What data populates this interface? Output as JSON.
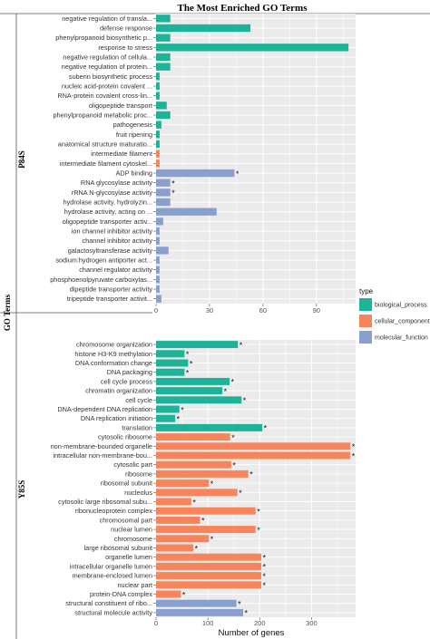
{
  "title": "The Most Enriched GO Terms",
  "ylabel": "GO Terms",
  "xlabel": "Number of genes",
  "legend": {
    "title": "type",
    "items": [
      {
        "name": "biological_process",
        "color": "#1cb398"
      },
      {
        "name": "cellular_component",
        "color": "#f8845c"
      },
      {
        "name": "molecular_function",
        "color": "#8a9fce"
      }
    ]
  },
  "chart_data": [
    {
      "type": "bar",
      "orientation": "horizontal",
      "panel": "P84S",
      "xlim": [
        0,
        112
      ],
      "xticks": [
        0,
        30,
        60,
        90
      ],
      "grid": true,
      "bars": [
        {
          "label": "negative regulation of transla...",
          "value": 8,
          "type": "biological_process",
          "star": false
        },
        {
          "label": "defense response",
          "value": 53,
          "type": "biological_process",
          "star": false
        },
        {
          "label": "phenylpropanoid biosynthetic p...",
          "value": 8,
          "type": "biological_process",
          "star": false
        },
        {
          "label": "response to stress",
          "value": 108,
          "type": "biological_process",
          "star": false
        },
        {
          "label": "negative regulation of cellula...",
          "value": 8,
          "type": "biological_process",
          "star": false
        },
        {
          "label": "negative regulation of protein...",
          "value": 8,
          "type": "biological_process",
          "star": false
        },
        {
          "label": "suberin biosynthetic process",
          "value": 2,
          "type": "biological_process",
          "star": false
        },
        {
          "label": "nucleic acid-protein covalent ...",
          "value": 2,
          "type": "biological_process",
          "star": false
        },
        {
          "label": "RNA-protein covalent cross-lin...",
          "value": 2,
          "type": "biological_process",
          "star": false
        },
        {
          "label": "oligopeptide transport",
          "value": 6,
          "type": "biological_process",
          "star": false
        },
        {
          "label": "phenylpropanoid metabolic proc...",
          "value": 8,
          "type": "biological_process",
          "star": false
        },
        {
          "label": "pathogenesis",
          "value": 3,
          "type": "biological_process",
          "star": false
        },
        {
          "label": "fruit ripening",
          "value": 2,
          "type": "biological_process",
          "star": false
        },
        {
          "label": "anatomical structure maturatio...",
          "value": 2,
          "type": "biological_process",
          "star": false
        },
        {
          "label": "intermediate filament",
          "value": 2,
          "type": "cellular_component",
          "star": false
        },
        {
          "label": "intermediate filament cytoskel...",
          "value": 2,
          "type": "cellular_component",
          "star": false
        },
        {
          "label": "ADP binding",
          "value": 44,
          "type": "molecular_function",
          "star": true
        },
        {
          "label": "RNA glycosylase activity",
          "value": 8,
          "type": "molecular_function",
          "star": true
        },
        {
          "label": "rRNA N-glycosylase activity",
          "value": 8,
          "type": "molecular_function",
          "star": true
        },
        {
          "label": "hydrolase activity, hydrolyzin...",
          "value": 8,
          "type": "molecular_function",
          "star": false
        },
        {
          "label": "hydrolase activity, acting on ...",
          "value": 34,
          "type": "molecular_function",
          "star": false
        },
        {
          "label": "oligopeptide transporter activ...",
          "value": 4,
          "type": "molecular_function",
          "star": false
        },
        {
          "label": "ion channel inhibitor activity",
          "value": 2,
          "type": "molecular_function",
          "star": false
        },
        {
          "label": "channel inhibitor activity",
          "value": 2,
          "type": "molecular_function",
          "star": false
        },
        {
          "label": "galactosyltransferase activity",
          "value": 7,
          "type": "molecular_function",
          "star": false
        },
        {
          "label": "sodium:hydrogen antiporter act...",
          "value": 2,
          "type": "molecular_function",
          "star": false
        },
        {
          "label": "channel regulator activity",
          "value": 2,
          "type": "molecular_function",
          "star": false
        },
        {
          "label": "phosphoenolpyruvate carboxylas...",
          "value": 2,
          "type": "molecular_function",
          "star": false
        },
        {
          "label": "dipeptide transporter activity",
          "value": 2,
          "type": "molecular_function",
          "star": false
        },
        {
          "label": "tripeptide transporter activit...",
          "value": 3,
          "type": "molecular_function",
          "star": false
        }
      ]
    },
    {
      "type": "bar",
      "orientation": "horizontal",
      "panel": "Y85S",
      "xlim": [
        0,
        385
      ],
      "xticks": [
        0,
        100,
        200,
        300
      ],
      "grid": true,
      "bars": [
        {
          "label": "chromosome organization",
          "value": 158,
          "type": "biological_process",
          "star": true
        },
        {
          "label": "histone H3-K9 methylation",
          "value": 55,
          "type": "biological_process",
          "star": true
        },
        {
          "label": "DNA conformation change",
          "value": 62,
          "type": "biological_process",
          "star": true
        },
        {
          "label": "DNA packaging",
          "value": 55,
          "type": "biological_process",
          "star": true
        },
        {
          "label": "cell cycle process",
          "value": 142,
          "type": "biological_process",
          "star": true
        },
        {
          "label": "chromatin organization",
          "value": 128,
          "type": "biological_process",
          "star": true
        },
        {
          "label": "cell cycle",
          "value": 165,
          "type": "biological_process",
          "star": true
        },
        {
          "label": "DNA-dependent DNA replication",
          "value": 45,
          "type": "biological_process",
          "star": true
        },
        {
          "label": "DNA replication initiation",
          "value": 37,
          "type": "biological_process",
          "star": true
        },
        {
          "label": "translation",
          "value": 205,
          "type": "biological_process",
          "star": true
        },
        {
          "label": "cytosolic ribosome",
          "value": 143,
          "type": "cellular_component",
          "star": true
        },
        {
          "label": "non-membrane-bounded organelle",
          "value": 375,
          "type": "cellular_component",
          "star": true
        },
        {
          "label": "intracellular non-membrane-bou...",
          "value": 375,
          "type": "cellular_component",
          "star": true
        },
        {
          "label": "cytosolic part",
          "value": 145,
          "type": "cellular_component",
          "star": true
        },
        {
          "label": "ribosome",
          "value": 178,
          "type": "cellular_component",
          "star": true
        },
        {
          "label": "ribosomal subunit",
          "value": 102,
          "type": "cellular_component",
          "star": true
        },
        {
          "label": "nucleolus",
          "value": 157,
          "type": "cellular_component",
          "star": true
        },
        {
          "label": "cytosolic large ribosomal subu...",
          "value": 68,
          "type": "cellular_component",
          "star": true
        },
        {
          "label": "ribonucleoprotein complex",
          "value": 192,
          "type": "cellular_component",
          "star": true
        },
        {
          "label": "chromosomal part",
          "value": 85,
          "type": "cellular_component",
          "star": true
        },
        {
          "label": "nuclear lumen",
          "value": 192,
          "type": "cellular_component",
          "star": true
        },
        {
          "label": "chromosome",
          "value": 102,
          "type": "cellular_component",
          "star": true
        },
        {
          "label": "large ribosomal subunit",
          "value": 72,
          "type": "cellular_component",
          "star": true
        },
        {
          "label": "organelle lumen",
          "value": 203,
          "type": "cellular_component",
          "star": true
        },
        {
          "label": "intracellular organelle lumen",
          "value": 203,
          "type": "cellular_component",
          "star": true
        },
        {
          "label": "membrane-enclosed lumen",
          "value": 203,
          "type": "cellular_component",
          "star": true
        },
        {
          "label": "nuclear part",
          "value": 203,
          "type": "cellular_component",
          "star": true
        },
        {
          "label": "protein-DNA complex",
          "value": 48,
          "type": "cellular_component",
          "star": true
        },
        {
          "label": "structural constituent of ribo...",
          "value": 155,
          "type": "molecular_function",
          "star": true
        },
        {
          "label": "structural molecule activity",
          "value": 168,
          "type": "molecular_function",
          "star": true
        }
      ]
    }
  ]
}
